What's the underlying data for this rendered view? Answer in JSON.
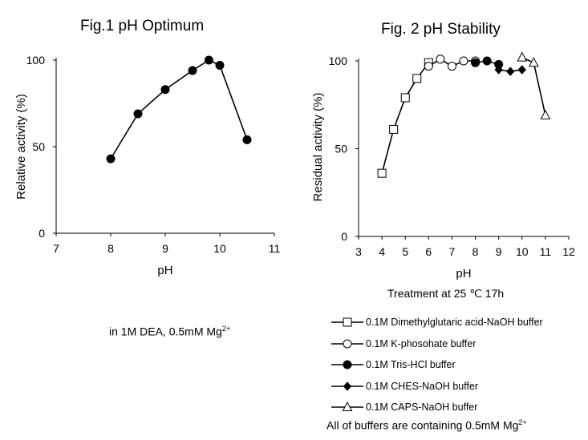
{
  "chart_data": [
    {
      "type": "line",
      "title": "Fig.1 pH Optimum",
      "xlabel": "pH",
      "ylabel": "Relative activity (%)",
      "xlim": [
        7,
        11
      ],
      "ylim": [
        0,
        100
      ],
      "xticks": [
        "7",
        "8",
        "9",
        "10",
        "11"
      ],
      "yticks": [
        "0",
        "50",
        "100"
      ],
      "grid": false,
      "series": [
        {
          "marker": "filled-circle",
          "x": [
            8.0,
            8.5,
            9.0,
            9.5,
            9.8,
            10.0,
            10.5
          ],
          "y": [
            43,
            69,
            83,
            94,
            100,
            97,
            54
          ]
        }
      ],
      "annotation_prefix": "in 1M DEA, 0.5mM Mg",
      "annotation_sup": "2+"
    },
    {
      "type": "line",
      "title": "Fig. 2 pH Stability",
      "xlabel": "pH",
      "ylabel": "Residual activity (%)",
      "xlim": [
        3,
        12
      ],
      "ylim": [
        0,
        100
      ],
      "xticks": [
        "3",
        "4",
        "5",
        "6",
        "7",
        "8",
        "9",
        "10",
        "11",
        "12"
      ],
      "yticks": [
        "0",
        "50",
        "100"
      ],
      "grid": false,
      "subtitle": "Treatment at 25 ℃ 17h",
      "legend_position": "bottom",
      "series": [
        {
          "name": "0.1M Dimethylglutaric acid-NaOH buffer",
          "marker": "open-square",
          "x": [
            4.0,
            4.5,
            5.0,
            5.5,
            6.0
          ],
          "y": [
            36,
            61,
            79,
            90,
            99
          ]
        },
        {
          "name": "0.1M K-phosohate buffer",
          "marker": "open-circle",
          "x": [
            6.0,
            6.5,
            7.0,
            7.5,
            8.0
          ],
          "y": [
            97,
            101,
            97,
            100,
            100
          ]
        },
        {
          "name": "0.1M Tris-HCl buffer",
          "marker": "filled-circle",
          "x": [
            8.0,
            8.5,
            9.0
          ],
          "y": [
            99,
            100,
            98
          ]
        },
        {
          "name": "0.1M CHES-NaOH buffer",
          "marker": "filled-diamond",
          "x": [
            9.0,
            9.5,
            10.0
          ],
          "y": [
            95,
            94,
            95
          ]
        },
        {
          "name": "0.1M CAPS-NaOH buffer",
          "marker": "open-triangle",
          "x": [
            10.0,
            10.5,
            11.0
          ],
          "y": [
            102,
            99,
            69
          ]
        }
      ],
      "footnote_prefix": "All of buffers are containing 0.5mM Mg",
      "footnote_sup": "2+"
    }
  ]
}
